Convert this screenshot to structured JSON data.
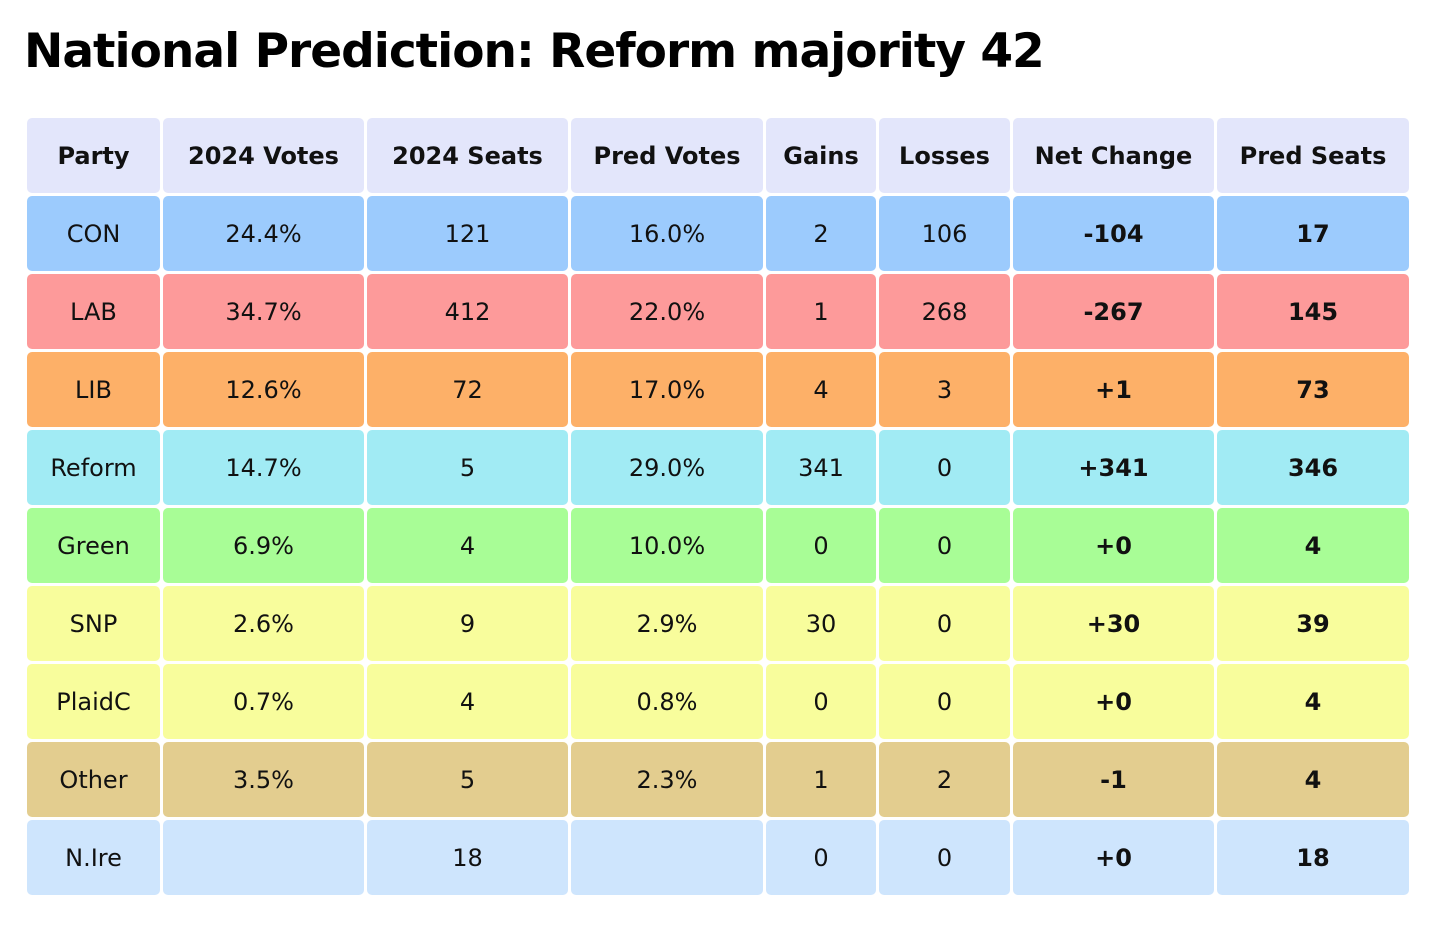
{
  "title": "National Prediction: Reform majority 42",
  "chart_data": {
    "type": "table",
    "title": "National Prediction: Reform majority 42",
    "header_color": "#e3e6fb",
    "columns": [
      "Party",
      "2024 Votes",
      "2024 Seats",
      "Pred Votes",
      "Gains",
      "Losses",
      "Net Change",
      "Pred Seats"
    ],
    "rows": [
      {
        "color": "#9ccbfd",
        "cells": [
          "CON",
          "24.4%",
          "121",
          "16.0%",
          "2",
          "106",
          "-104",
          "17"
        ]
      },
      {
        "color": "#fd9a9a",
        "cells": [
          "LAB",
          "34.7%",
          "412",
          "22.0%",
          "1",
          "268",
          "-267",
          "145"
        ]
      },
      {
        "color": "#fdb068",
        "cells": [
          "LIB",
          "12.6%",
          "72",
          "17.0%",
          "4",
          "3",
          "+1",
          "73"
        ]
      },
      {
        "color": "#a1ebf4",
        "cells": [
          "Reform",
          "14.7%",
          "5",
          "29.0%",
          "341",
          "0",
          "+341",
          "346"
        ]
      },
      {
        "color": "#a8fd96",
        "cells": [
          "Green",
          "6.9%",
          "4",
          "10.0%",
          "0",
          "0",
          "+0",
          "4"
        ]
      },
      {
        "color": "#f8fd9c",
        "cells": [
          "SNP",
          "2.6%",
          "9",
          "2.9%",
          "30",
          "0",
          "+30",
          "39"
        ]
      },
      {
        "color": "#f8fd9c",
        "cells": [
          "PlaidC",
          "0.7%",
          "4",
          "0.8%",
          "0",
          "0",
          "+0",
          "4"
        ]
      },
      {
        "color": "#e3cd8f",
        "cells": [
          "Other",
          "3.5%",
          "5",
          "2.3%",
          "1",
          "2",
          "-1",
          "4"
        ]
      },
      {
        "color": "#cee5fd",
        "cells": [
          "N.Ire",
          "",
          "18",
          "",
          "0",
          "0",
          "+0",
          "18"
        ]
      }
    ],
    "bold_columns": [
      6,
      7
    ]
  }
}
